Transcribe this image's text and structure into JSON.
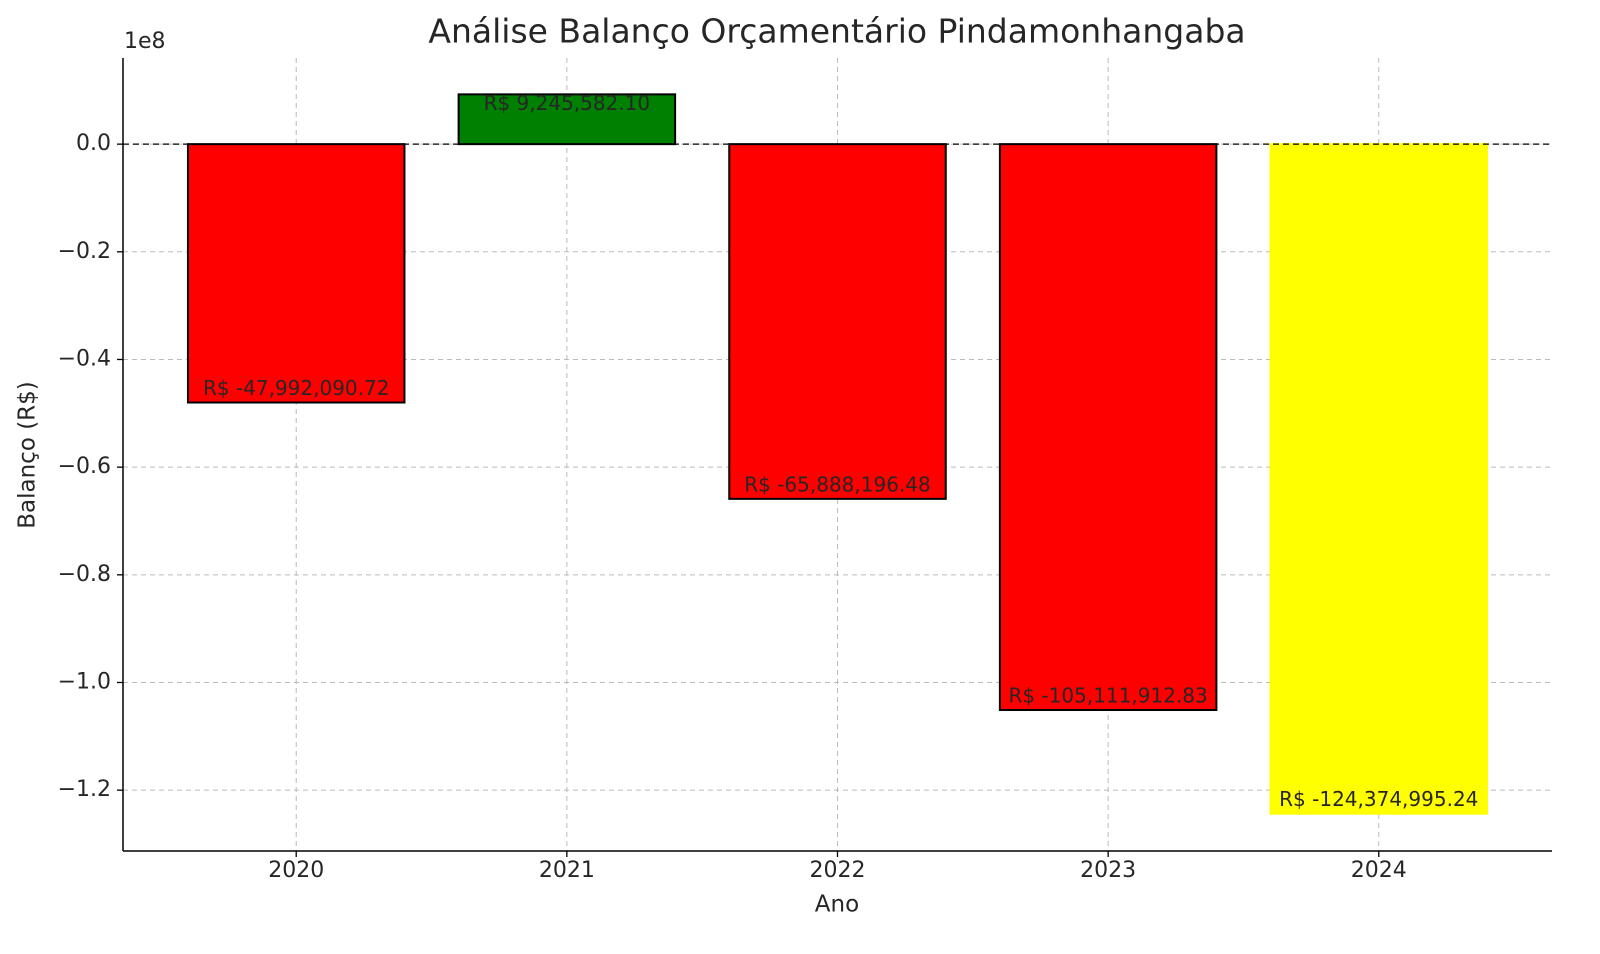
{
  "chart_data": {
    "type": "bar",
    "title": "Análise Balanço Orçamentário Pindamonhangaba",
    "x_label": "Ano",
    "y_label": "Balanço (R$)",
    "y_offset_label": "1e8",
    "categories": [
      "2020",
      "2021",
      "2022",
      "2023",
      "2024"
    ],
    "values": [
      -47992090.72,
      9245582.1,
      -65888196.48,
      -105111912.83,
      -124374995.24
    ],
    "value_labels": [
      "R$ -47,992,090.72",
      "R$ 9,245,582.10",
      "R$ -65,888,196.48",
      "R$ -105,111,912.83",
      "R$ -124,374,995.24"
    ],
    "colors": [
      "red",
      "green",
      "red",
      "red",
      "yellow"
    ],
    "edgecolors": [
      "black",
      "black",
      "black",
      "black",
      "yellow"
    ],
    "ylim": [
      -131300000,
      16000000
    ],
    "yticks": [
      {
        "value": 0,
        "label": "0.0"
      },
      {
        "value": -20000000,
        "label": "−0.2"
      },
      {
        "value": -40000000,
        "label": "−0.4"
      },
      {
        "value": -60000000,
        "label": "−0.6"
      },
      {
        "value": -80000000,
        "label": "−0.8"
      },
      {
        "value": -100000000,
        "label": "−1.0"
      },
      {
        "value": -120000000,
        "label": "−1.2"
      }
    ],
    "axhline": 0,
    "grid": true
  }
}
